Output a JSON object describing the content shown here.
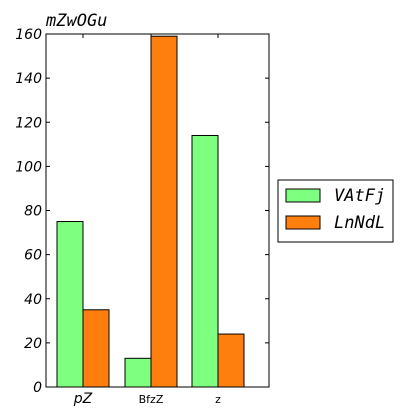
{
  "chart_data": {
    "type": "bar",
    "title": "mZwOGu",
    "xlabel": "",
    "ylabel": "",
    "categories": [
      "pZ",
      "BfzZ",
      "z"
    ],
    "series": [
      {
        "name": "VAtFj",
        "color": "#7fff7f",
        "values": [
          75,
          13,
          114
        ]
      },
      {
        "name": "LnNdL",
        "color": "#ff7f0e",
        "values": [
          35,
          159,
          24
        ]
      }
    ],
    "ylim": [
      0,
      160
    ],
    "yticks": [
      0,
      20,
      40,
      60,
      80,
      100,
      120,
      140,
      160
    ],
    "grid": false,
    "legend_position": "outside-right"
  }
}
